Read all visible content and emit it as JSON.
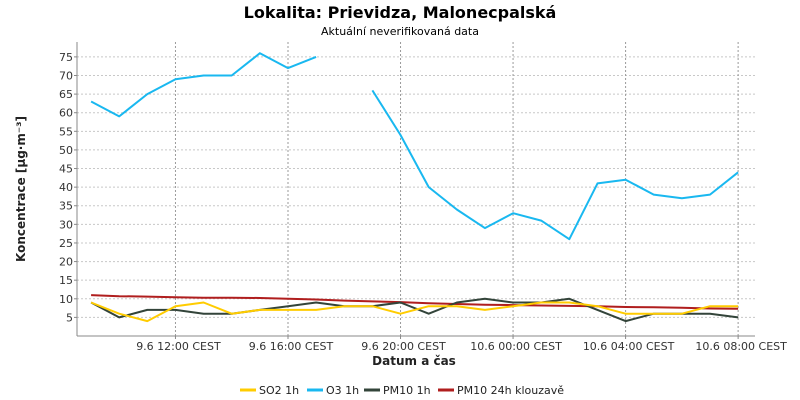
{
  "chart_data": {
    "type": "line",
    "title": "Lokalita: Prievidza, Malonecpalská",
    "subtitle": "Aktuální neverifikovaná data",
    "xlabel": "Datum a čas",
    "ylabel": "Koncentrace [µg·m⁻³]",
    "ylim": [
      0,
      79
    ],
    "yticks": [
      5,
      10,
      15,
      20,
      25,
      30,
      35,
      40,
      45,
      50,
      55,
      60,
      65,
      70,
      75
    ],
    "xlim": [
      8.5,
      32.6
    ],
    "x_ticks": [
      {
        "x": 12,
        "label": "9.6 12:00 CEST"
      },
      {
        "x": 16,
        "label": "9.6 16:00 CEST"
      },
      {
        "x": 20,
        "label": "9.6 20:00 CEST"
      },
      {
        "x": 24,
        "label": "10.6 00:00 CEST"
      },
      {
        "x": 28,
        "label": "10.6 04:00 CEST"
      },
      {
        "x": 32,
        "label": "10.6 08:00 CEST"
      }
    ],
    "grid": true,
    "legend_position": "bottom",
    "series": [
      {
        "name": "SO2 1h",
        "color": "#FFCC00",
        "values": [
          [
            9,
            9
          ],
          [
            10,
            6
          ],
          [
            11,
            4
          ],
          [
            12,
            8
          ],
          [
            13,
            9
          ],
          [
            14,
            6
          ],
          [
            15,
            7
          ],
          [
            16,
            7
          ],
          [
            17,
            7
          ],
          [
            18,
            8
          ],
          [
            19,
            8
          ],
          [
            20,
            6
          ],
          [
            21,
            8
          ],
          [
            22,
            8
          ],
          [
            23,
            7
          ],
          [
            24,
            8
          ],
          [
            25,
            9
          ],
          [
            26,
            9
          ],
          [
            27,
            8
          ],
          [
            28,
            6
          ],
          [
            29,
            6
          ],
          [
            30,
            6
          ],
          [
            31,
            8
          ],
          [
            32,
            8
          ]
        ]
      },
      {
        "name": "O3 1h",
        "color": "#19B8F0",
        "values": [
          [
            9,
            63
          ],
          [
            10,
            59
          ],
          [
            11,
            65
          ],
          [
            12,
            69
          ],
          [
            13,
            70
          ],
          [
            14,
            70
          ],
          [
            15,
            76
          ],
          [
            16,
            72
          ],
          [
            17,
            75
          ],
          null,
          [
            19,
            66
          ],
          [
            20,
            54
          ],
          [
            21,
            40
          ],
          [
            22,
            34
          ],
          [
            23,
            29
          ],
          [
            24,
            33
          ],
          [
            25,
            31
          ],
          [
            26,
            26
          ],
          [
            27,
            41
          ],
          [
            28,
            42
          ],
          [
            29,
            38
          ],
          [
            30,
            37
          ],
          [
            31,
            38
          ],
          [
            32,
            44
          ]
        ]
      },
      {
        "name": "PM10 1h",
        "color": "#33443A",
        "values": [
          [
            9,
            9
          ],
          [
            10,
            5
          ],
          [
            11,
            7
          ],
          [
            12,
            7
          ],
          [
            13,
            6
          ],
          [
            14,
            6
          ],
          [
            15,
            7
          ],
          [
            16,
            8
          ],
          [
            17,
            9
          ],
          [
            18,
            8
          ],
          [
            19,
            8
          ],
          [
            20,
            9
          ],
          [
            21,
            6
          ],
          [
            22,
            9
          ],
          [
            23,
            10
          ],
          [
            24,
            9
          ],
          [
            25,
            9
          ],
          [
            26,
            10
          ],
          [
            27,
            7
          ],
          [
            28,
            4
          ],
          [
            29,
            6
          ],
          [
            30,
            6
          ],
          [
            31,
            6
          ],
          [
            32,
            5
          ]
        ]
      },
      {
        "name": "PM10 24h klouzavě",
        "color": "#B01E1E",
        "values": [
          [
            9,
            11
          ],
          [
            10,
            10.7
          ],
          [
            11,
            10.6
          ],
          [
            12,
            10.4
          ],
          [
            13,
            10.3
          ],
          [
            14,
            10.3
          ],
          [
            15,
            10.2
          ],
          [
            16,
            10
          ],
          [
            17,
            9.8
          ],
          [
            18,
            9.5
          ],
          [
            19,
            9.3
          ],
          [
            20,
            9.1
          ],
          [
            21,
            8.8
          ],
          [
            22,
            8.6
          ],
          [
            23,
            8.4
          ],
          [
            24,
            8.3
          ],
          [
            25,
            8.2
          ],
          [
            26,
            8.1
          ],
          [
            27,
            8
          ],
          [
            28,
            7.8
          ],
          [
            29,
            7.7
          ],
          [
            30,
            7.6
          ],
          [
            31,
            7.4
          ],
          [
            32,
            7.3
          ]
        ]
      }
    ]
  }
}
